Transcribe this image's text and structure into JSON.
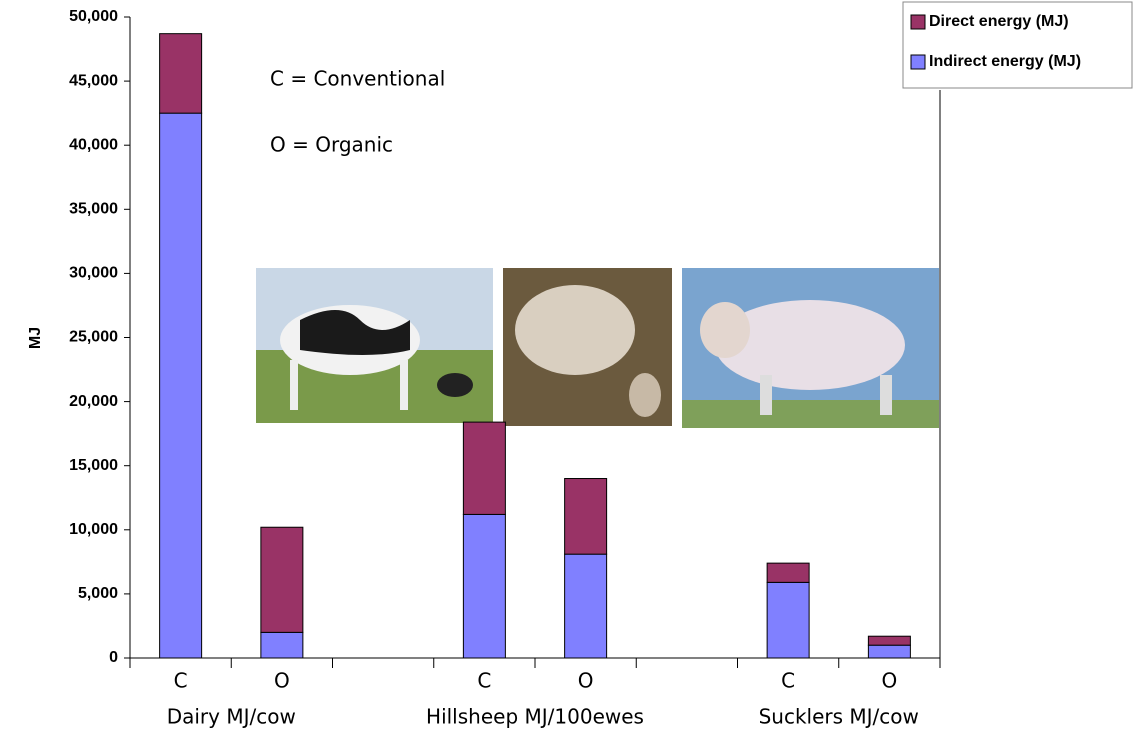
{
  "chart_data": {
    "type": "stacked_bar",
    "y_label": "MJ",
    "categories": [
      "C",
      "O",
      null,
      "C",
      "O",
      null,
      "C",
      "O"
    ],
    "group_labels": [
      "Dairy MJ/cow",
      "Hillsheep MJ/100ewes",
      "Sucklers MJ/cow"
    ],
    "annotations": [
      "C = Conventional",
      "O = Organic"
    ],
    "series": [
      {
        "name": "Indirect energy (MJ)",
        "color": "#8080ff",
        "values": [
          42500,
          2000,
          null,
          11200,
          8100,
          null,
          5900,
          1000
        ]
      },
      {
        "name": "Direct energy (MJ)",
        "color": "#993366",
        "values": [
          6200,
          8200,
          null,
          7200,
          5900,
          null,
          1500,
          700
        ]
      }
    ],
    "ylim": [
      0,
      50000
    ],
    "yticks": [
      0,
      {
        "value": 5000,
        "label": "5,000"
      },
      {
        "value": 10000,
        "label": "10,000"
      },
      {
        "value": 15000,
        "label": "15,000"
      },
      {
        "value": 20000,
        "label": "20,000"
      },
      {
        "value": 25000,
        "label": "25,000"
      },
      {
        "value": 30000,
        "label": "30,000"
      },
      {
        "value": 35000,
        "label": "35,000"
      },
      {
        "value": 40000,
        "label": "40,000"
      },
      {
        "value": 45000,
        "label": "45,000"
      },
      {
        "value": 50000,
        "label": "50,000"
      }
    ],
    "legend": "top-right"
  }
}
